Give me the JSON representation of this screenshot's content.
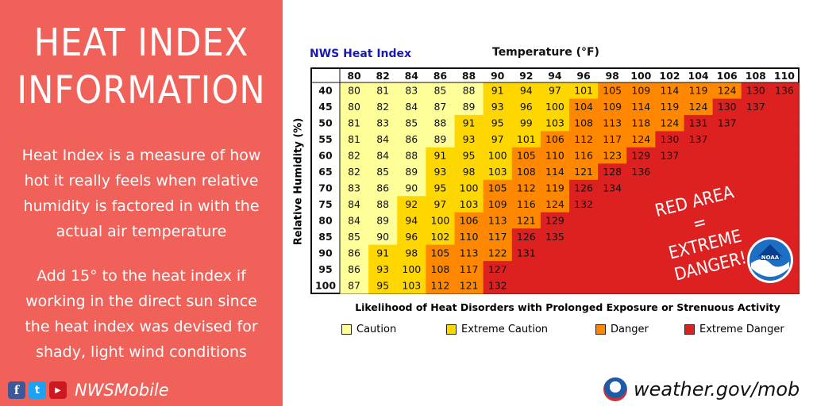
{
  "panel": {
    "title_line1": "HEAT INDEX",
    "title_line2": "INFORMATION",
    "paragraph1": "Heat Index is a measure of how hot it really feels when relative humidity is factored in with the actual air temperature",
    "paragraph2": "Add 15° to the heat index if working in the direct sun since the heat index was devised for shady, light wind conditions",
    "social_handle": "NWSMobile",
    "social_icons": [
      "facebook-icon",
      "twitter-icon",
      "youtube-icon"
    ]
  },
  "footer": {
    "website": "weather.gov/mob"
  },
  "annotation": {
    "line1": "RED AREA",
    "line2": "=",
    "line3": "EXTREME DANGER!"
  },
  "chart_data": {
    "type": "table",
    "title": "NWS Heat Index",
    "xlabel": "Temperature (°F)",
    "ylabel": "Relative Humidity (%)",
    "footnote": "Likelihood of Heat Disorders with Prolonged Exposure or Strenuous Activity",
    "columns": [
      80,
      82,
      84,
      86,
      88,
      90,
      92,
      94,
      96,
      98,
      100,
      102,
      104,
      106,
      108,
      110
    ],
    "rows": [
      40,
      45,
      50,
      55,
      60,
      65,
      70,
      75,
      80,
      85,
      90,
      95,
      100
    ],
    "values": [
      [
        80,
        81,
        83,
        85,
        88,
        91,
        94,
        97,
        101,
        105,
        109,
        114,
        119,
        124,
        130,
        136
      ],
      [
        80,
        82,
        84,
        87,
        89,
        93,
        96,
        100,
        104,
        109,
        114,
        119,
        124,
        130,
        137,
        null
      ],
      [
        81,
        83,
        85,
        88,
        91,
        95,
        99,
        103,
        108,
        113,
        118,
        124,
        131,
        137,
        null,
        null
      ],
      [
        81,
        84,
        86,
        89,
        93,
        97,
        101,
        106,
        112,
        117,
        124,
        130,
        137,
        null,
        null,
        null
      ],
      [
        82,
        84,
        88,
        91,
        95,
        100,
        105,
        110,
        116,
        123,
        129,
        137,
        null,
        null,
        null,
        null
      ],
      [
        82,
        85,
        89,
        93,
        98,
        103,
        108,
        114,
        121,
        128,
        136,
        null,
        null,
        null,
        null,
        null
      ],
      [
        83,
        86,
        90,
        95,
        100,
        105,
        112,
        119,
        126,
        134,
        null,
        null,
        null,
        null,
        null,
        null
      ],
      [
        84,
        88,
        92,
        97,
        103,
        109,
        116,
        124,
        132,
        null,
        null,
        null,
        null,
        null,
        null,
        null
      ],
      [
        84,
        89,
        94,
        100,
        106,
        113,
        121,
        129,
        null,
        null,
        null,
        null,
        null,
        null,
        null,
        null
      ],
      [
        85,
        90,
        96,
        102,
        110,
        117,
        126,
        135,
        null,
        null,
        null,
        null,
        null,
        null,
        null,
        null
      ],
      [
        86,
        91,
        98,
        105,
        113,
        122,
        131,
        null,
        null,
        null,
        null,
        null,
        null,
        null,
        null,
        null
      ],
      [
        86,
        93,
        100,
        108,
        117,
        127,
        null,
        null,
        null,
        null,
        null,
        null,
        null,
        null,
        null,
        null
      ],
      [
        87,
        95,
        103,
        112,
        121,
        132,
        null,
        null,
        null,
        null,
        null,
        null,
        null,
        null,
        null,
        null
      ]
    ],
    "categories": [
      {
        "name": "Caution",
        "min": 80,
        "max": 90,
        "color": "#ffff99"
      },
      {
        "name": "Extreme Caution",
        "min": 91,
        "max": 103,
        "color": "#ffd700"
      },
      {
        "name": "Danger",
        "min": 104,
        "max": 124,
        "color": "#ff8800"
      },
      {
        "name": "Extreme Danger",
        "min": 125,
        "max": null,
        "color": "#dd2020"
      }
    ]
  }
}
